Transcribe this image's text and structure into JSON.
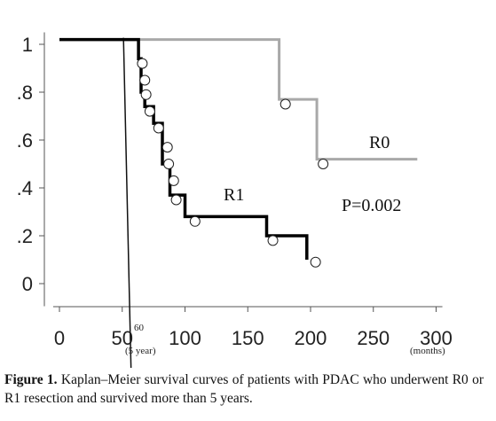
{
  "chart_data": {
    "type": "line",
    "subtype": "kaplan-meier-step",
    "x_tick_labels": [
      "0",
      "50",
      "100",
      "150",
      "200",
      "250",
      "300"
    ],
    "x_tick_values": [
      0,
      50,
      100,
      150,
      200,
      250,
      300
    ],
    "y_tick_labels": [
      "0",
      ".2",
      ".4",
      ".6",
      ".8",
      "1"
    ],
    "y_tick_values": [
      0,
      0.2,
      0.4,
      0.6,
      0.8,
      1.0
    ],
    "xlim": [
      -5,
      305
    ],
    "ylim": [
      -0.05,
      1.05
    ],
    "grid": false,
    "x_unit_label": "(months)",
    "marker_60_label": "60",
    "marker_60_sub": "(5 year)",
    "series": [
      {
        "name": "R0",
        "color": "#a9a9a9",
        "steps": [
          [
            0,
            1.02
          ],
          [
            175,
            1.02
          ],
          [
            175,
            0.77
          ],
          [
            205,
            0.77
          ],
          [
            205,
            0.52
          ],
          [
            285,
            0.52
          ]
        ],
        "censor": [
          [
            180,
            0.75
          ],
          [
            210,
            0.5
          ]
        ]
      },
      {
        "name": "R1",
        "color": "#000000",
        "steps": [
          [
            0,
            1.02
          ],
          [
            63,
            1.02
          ],
          [
            63,
            0.94
          ],
          [
            65,
            0.94
          ],
          [
            65,
            0.8
          ],
          [
            68,
            0.8
          ],
          [
            68,
            0.74
          ],
          [
            75,
            0.74
          ],
          [
            75,
            0.67
          ],
          [
            82,
            0.67
          ],
          [
            82,
            0.5
          ],
          [
            88,
            0.5
          ],
          [
            88,
            0.37
          ],
          [
            100,
            0.37
          ],
          [
            100,
            0.28
          ],
          [
            165,
            0.28
          ],
          [
            165,
            0.2
          ],
          [
            197,
            0.2
          ],
          [
            197,
            0.1
          ]
        ],
        "censor": [
          [
            66,
            0.92
          ],
          [
            68,
            0.85
          ],
          [
            69,
            0.79
          ],
          [
            72,
            0.72
          ],
          [
            79,
            0.65
          ],
          [
            86,
            0.57
          ],
          [
            87,
            0.5
          ],
          [
            91,
            0.43
          ],
          [
            93,
            0.35
          ],
          [
            108,
            0.26
          ],
          [
            170,
            0.18
          ],
          [
            204,
            0.09
          ]
        ]
      }
    ],
    "reference_line": {
      "x_bottom": 57,
      "x_top": 51
    },
    "annotations": {
      "r0": "R0",
      "r1": "R1",
      "p_value": "P=0.002"
    }
  },
  "caption": {
    "label": "Figure 1.",
    "text": " Kaplan–Meier survival curves of patients with PDAC who underwent R0 or R1 resection and survived more than 5 years."
  }
}
